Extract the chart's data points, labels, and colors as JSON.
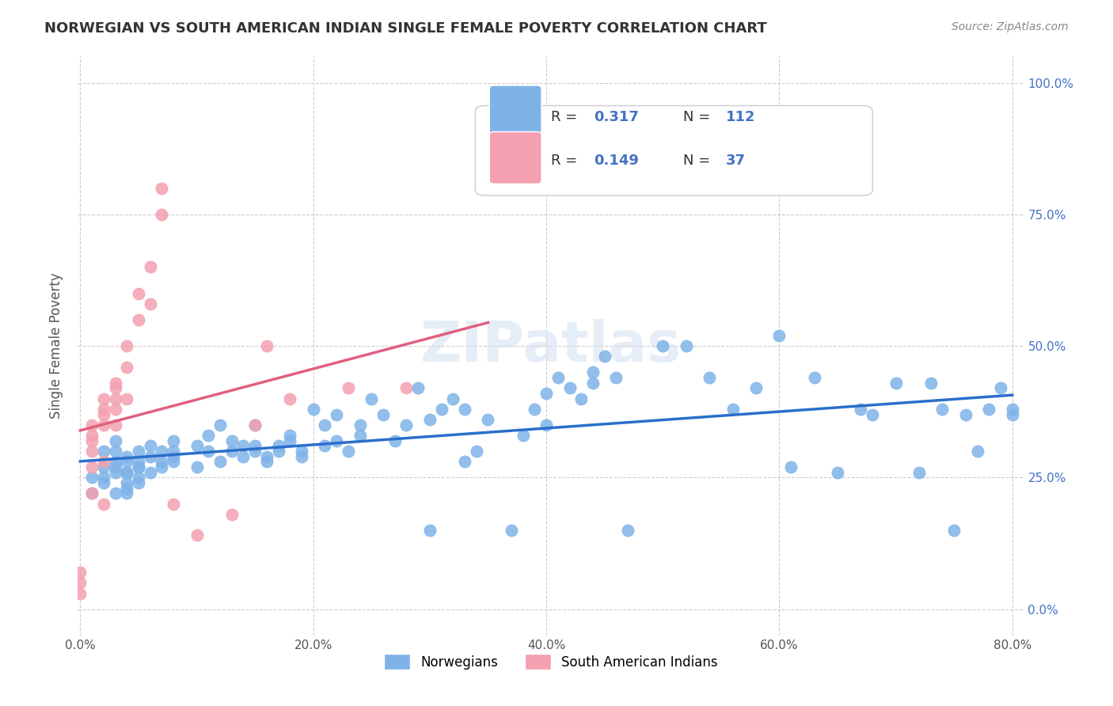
{
  "title": "NORWEGIAN VS SOUTH AMERICAN INDIAN SINGLE FEMALE POVERTY CORRELATION CHART",
  "source": "Source: ZipAtlas.com",
  "ylabel": "Single Female Poverty",
  "xlabel_ticks": [
    "0.0%",
    "20.0%",
    "40.0%",
    "60.0%",
    "80.0%"
  ],
  "ylabel_ticks": [
    "0.0%",
    "25.0%",
    "50.0%",
    "75.0%",
    "100.0%"
  ],
  "xmin": 0.0,
  "xmax": 0.8,
  "ymin": -0.05,
  "ymax": 1.05,
  "norwegian_color": "#7fb3e8",
  "south_american_color": "#f4a0b0",
  "norwegian_line_color": "#2a6fcc",
  "south_american_line_color": "#e06080",
  "trend_line_color": "#b0c8e8",
  "R_norwegian": 0.317,
  "N_norwegian": 112,
  "R_south_american": 0.149,
  "N_south_american": 37,
  "watermark": "ZIPatlas",
  "norwegian_points_x": [
    0.01,
    0.01,
    0.02,
    0.02,
    0.02,
    0.02,
    0.03,
    0.03,
    0.03,
    0.03,
    0.03,
    0.03,
    0.04,
    0.04,
    0.04,
    0.04,
    0.04,
    0.04,
    0.04,
    0.05,
    0.05,
    0.05,
    0.05,
    0.05,
    0.05,
    0.06,
    0.06,
    0.06,
    0.07,
    0.07,
    0.07,
    0.08,
    0.08,
    0.08,
    0.08,
    0.1,
    0.1,
    0.11,
    0.11,
    0.12,
    0.12,
    0.13,
    0.13,
    0.14,
    0.14,
    0.15,
    0.15,
    0.15,
    0.16,
    0.16,
    0.17,
    0.17,
    0.18,
    0.18,
    0.19,
    0.19,
    0.2,
    0.21,
    0.21,
    0.22,
    0.22,
    0.23,
    0.24,
    0.24,
    0.25,
    0.26,
    0.27,
    0.28,
    0.29,
    0.3,
    0.3,
    0.31,
    0.32,
    0.33,
    0.33,
    0.34,
    0.35,
    0.37,
    0.38,
    0.39,
    0.4,
    0.4,
    0.41,
    0.42,
    0.43,
    0.44,
    0.44,
    0.45,
    0.46,
    0.47,
    0.5,
    0.52,
    0.54,
    0.56,
    0.58,
    0.6,
    0.61,
    0.63,
    0.65,
    0.67,
    0.68,
    0.7,
    0.72,
    0.73,
    0.74,
    0.75,
    0.76,
    0.77,
    0.78,
    0.79,
    0.8,
    0.8
  ],
  "norwegian_points_y": [
    0.22,
    0.25,
    0.25,
    0.27,
    0.24,
    0.3,
    0.22,
    0.27,
    0.26,
    0.3,
    0.32,
    0.28,
    0.23,
    0.26,
    0.28,
    0.24,
    0.22,
    0.29,
    0.26,
    0.27,
    0.25,
    0.24,
    0.28,
    0.3,
    0.27,
    0.31,
    0.29,
    0.26,
    0.28,
    0.3,
    0.27,
    0.29,
    0.28,
    0.32,
    0.3,
    0.31,
    0.27,
    0.33,
    0.3,
    0.28,
    0.35,
    0.32,
    0.3,
    0.31,
    0.29,
    0.3,
    0.31,
    0.35,
    0.29,
    0.28,
    0.31,
    0.3,
    0.32,
    0.33,
    0.3,
    0.29,
    0.38,
    0.31,
    0.35,
    0.32,
    0.37,
    0.3,
    0.33,
    0.35,
    0.4,
    0.37,
    0.32,
    0.35,
    0.42,
    0.36,
    0.15,
    0.38,
    0.4,
    0.38,
    0.28,
    0.3,
    0.36,
    0.15,
    0.33,
    0.38,
    0.35,
    0.41,
    0.44,
    0.42,
    0.4,
    0.45,
    0.43,
    0.48,
    0.44,
    0.15,
    0.5,
    0.5,
    0.44,
    0.38,
    0.42,
    0.52,
    0.27,
    0.44,
    0.26,
    0.38,
    0.37,
    0.43,
    0.26,
    0.43,
    0.38,
    0.15,
    0.37,
    0.3,
    0.38,
    0.42,
    0.37,
    0.38
  ],
  "south_american_points_x": [
    0.0,
    0.0,
    0.0,
    0.01,
    0.01,
    0.01,
    0.01,
    0.01,
    0.01,
    0.02,
    0.02,
    0.02,
    0.02,
    0.02,
    0.02,
    0.03,
    0.03,
    0.03,
    0.03,
    0.03,
    0.04,
    0.04,
    0.04,
    0.05,
    0.05,
    0.06,
    0.06,
    0.07,
    0.07,
    0.08,
    0.1,
    0.13,
    0.15,
    0.16,
    0.18,
    0.23,
    0.28
  ],
  "south_american_points_y": [
    0.03,
    0.07,
    0.05,
    0.3,
    0.32,
    0.33,
    0.35,
    0.27,
    0.22,
    0.38,
    0.4,
    0.35,
    0.37,
    0.28,
    0.2,
    0.35,
    0.43,
    0.4,
    0.42,
    0.38,
    0.5,
    0.46,
    0.4,
    0.6,
    0.55,
    0.65,
    0.58,
    0.8,
    0.75,
    0.2,
    0.14,
    0.18,
    0.35,
    0.5,
    0.4,
    0.42,
    0.42
  ],
  "legend_blue_label1": "R = 0.317",
  "legend_blue_label2": "N = 112",
  "legend_pink_label1": "R = 0.149",
  "legend_pink_label2": "N =  37"
}
